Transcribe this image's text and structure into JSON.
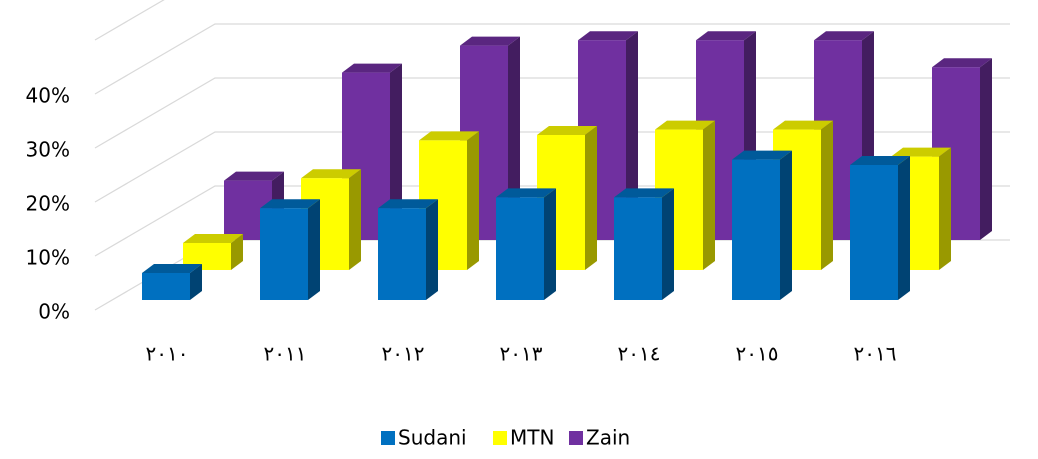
{
  "chart_data": {
    "type": "bar3d",
    "categories": [
      "٢٠١٠",
      "٢٠١١",
      "٢٠١٢",
      "٢٠١٣",
      "٢٠١٤",
      "٢٠١٥",
      "٢٠١٦"
    ],
    "series": [
      {
        "name": "Sudani",
        "color": "#0070c0",
        "values": [
          5,
          17,
          17,
          19,
          19,
          26,
          25
        ]
      },
      {
        "name": "MTN",
        "color": "#ffff00",
        "values": [
          5,
          17,
          24,
          25,
          26,
          26,
          21
        ]
      },
      {
        "name": "Zain",
        "color": "#7030a0",
        "values": [
          11,
          31,
          36,
          37,
          37,
          37,
          32
        ]
      }
    ],
    "ylim": [
      0,
      50
    ],
    "yticks": [
      {
        "value": 0,
        "label": "0%"
      },
      {
        "value": 10,
        "label": "10%"
      },
      {
        "value": 20,
        "label": "20%"
      },
      {
        "value": 30,
        "label": "30%"
      },
      {
        "value": 40,
        "label": "40%"
      }
    ],
    "grid": true,
    "legend": "bottom"
  }
}
